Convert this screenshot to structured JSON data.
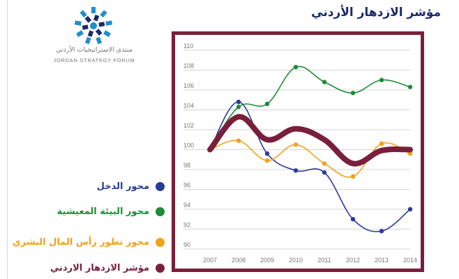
{
  "page": {
    "title": "مؤشر الازدهار الأردني"
  },
  "brand": {
    "name_ar": "منتدى الاستراتيجيات الأردني",
    "name_en": "JORDAN STRATEGY FORUM",
    "logo_icon": "jsf-logo-icon"
  },
  "colors": {
    "frame": "#7a1f3b",
    "title": "#1c2a6a"
  },
  "legend": {
    "items": [
      {
        "label": "محور الدخل",
        "color": "#2a3a9a"
      },
      {
        "label": "محور البيئة المعيشية",
        "color": "#1e8b3a"
      },
      {
        "label": "محور تطور رأس المال البشري",
        "color": "#f0a21a"
      },
      {
        "label": "مؤشر الازدهار الاردني",
        "color": "#7a1f3b"
      }
    ]
  },
  "chart_data": {
    "type": "line",
    "title": "",
    "xlabel": "",
    "ylabel": "",
    "x": [
      "2007",
      "2008",
      "2009",
      "2010",
      "2011",
      "2012",
      "2013",
      "2014"
    ],
    "ylim": [
      90,
      110
    ],
    "yticks": [
      90,
      92,
      94,
      96,
      98,
      100,
      102,
      104,
      106,
      108,
      110
    ],
    "grid": true,
    "legend_position": "left, outside plot",
    "series": [
      {
        "name": "محور الدخل",
        "color": "#2a3a9a",
        "values": [
          100,
          104.8,
          99.6,
          97.9,
          97.7,
          93.0,
          91.8,
          94.0
        ]
      },
      {
        "name": "محور البيئة المعيشية",
        "color": "#1e8b3a",
        "values": [
          100,
          104.3,
          104.6,
          108.3,
          106.8,
          105.7,
          107.0,
          106.3
        ]
      },
      {
        "name": "محور تطور رأس المال البشري",
        "color": "#f0a21a",
        "values": [
          100,
          100.9,
          98.9,
          100.5,
          98.6,
          97.3,
          100.6,
          99.6
        ]
      },
      {
        "name": "مؤشر الازدهار الاردني",
        "color": "#7a1f3b",
        "values": [
          100,
          103.3,
          101.0,
          102.1,
          101.0,
          98.6,
          99.9,
          100.0
        ]
      }
    ]
  }
}
